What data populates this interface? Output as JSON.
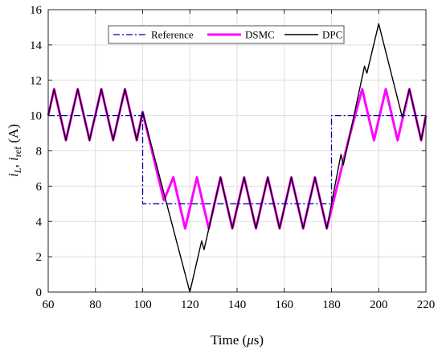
{
  "chart_data": {
    "type": "line",
    "xlabel": "Time (μs)",
    "ylabel": "i_L, i_ref (A)",
    "xlim": [
      60,
      220
    ],
    "ylim": [
      0,
      16
    ],
    "xticks": [
      60,
      80,
      100,
      120,
      140,
      160,
      180,
      200,
      220
    ],
    "yticks": [
      0,
      2,
      4,
      6,
      8,
      10,
      12,
      14,
      16
    ],
    "grid": true,
    "legend_position": "top-center",
    "series": [
      {
        "name": "Reference",
        "color": "#0000a8",
        "style": "dash-dot",
        "points": [
          [
            60,
            10
          ],
          [
            100,
            10
          ],
          [
            100,
            5
          ],
          [
            180,
            5
          ],
          [
            180,
            10
          ],
          [
            220,
            10
          ]
        ]
      },
      {
        "name": "DSMC",
        "color": "#ff00ff",
        "style": "solid",
        "points": [
          [
            60,
            10
          ],
          [
            62.5,
            11.5
          ],
          [
            67.5,
            8.6
          ],
          [
            72.5,
            11.5
          ],
          [
            77.5,
            8.6
          ],
          [
            82.5,
            11.5
          ],
          [
            87.5,
            8.6
          ],
          [
            92.5,
            11.5
          ],
          [
            97.5,
            8.6
          ],
          [
            100,
            10.2
          ],
          [
            109,
            5.2
          ],
          [
            113,
            6.5
          ],
          [
            118,
            3.6
          ],
          [
            123,
            6.5
          ],
          [
            128,
            3.6
          ],
          [
            133,
            6.5
          ],
          [
            138,
            3.6
          ],
          [
            143,
            6.5
          ],
          [
            148,
            3.6
          ],
          [
            153,
            6.5
          ],
          [
            158,
            3.6
          ],
          [
            163,
            6.5
          ],
          [
            168,
            3.6
          ],
          [
            173,
            6.5
          ],
          [
            178,
            3.6
          ],
          [
            187,
            8.5
          ],
          [
            193,
            11.5
          ],
          [
            198,
            8.6
          ],
          [
            203,
            11.5
          ],
          [
            208,
            8.6
          ],
          [
            213,
            11.5
          ],
          [
            218,
            8.6
          ],
          [
            220,
            10
          ]
        ]
      },
      {
        "name": "DPC",
        "color": "#000000",
        "style": "solid",
        "points": [
          [
            60,
            10
          ],
          [
            62.5,
            11.5
          ],
          [
            67.5,
            8.6
          ],
          [
            72.5,
            11.5
          ],
          [
            77.5,
            8.6
          ],
          [
            82.5,
            11.5
          ],
          [
            87.5,
            8.6
          ],
          [
            92.5,
            11.5
          ],
          [
            97.5,
            8.6
          ],
          [
            100,
            10.2
          ],
          [
            120,
            0
          ],
          [
            125,
            2.9
          ],
          [
            126,
            2.4
          ],
          [
            133,
            6.5
          ],
          [
            138,
            3.6
          ],
          [
            143,
            6.5
          ],
          [
            148,
            3.6
          ],
          [
            153,
            6.5
          ],
          [
            158,
            3.6
          ],
          [
            163,
            6.5
          ],
          [
            168,
            3.6
          ],
          [
            173,
            6.5
          ],
          [
            178,
            3.6
          ],
          [
            184,
            7.8
          ],
          [
            185,
            7.2
          ],
          [
            194,
            12.8
          ],
          [
            195,
            12.4
          ],
          [
            200,
            15.2
          ],
          [
            210,
            9.9
          ],
          [
            213,
            11.5
          ],
          [
            218,
            8.6
          ],
          [
            220,
            10
          ]
        ]
      }
    ]
  }
}
